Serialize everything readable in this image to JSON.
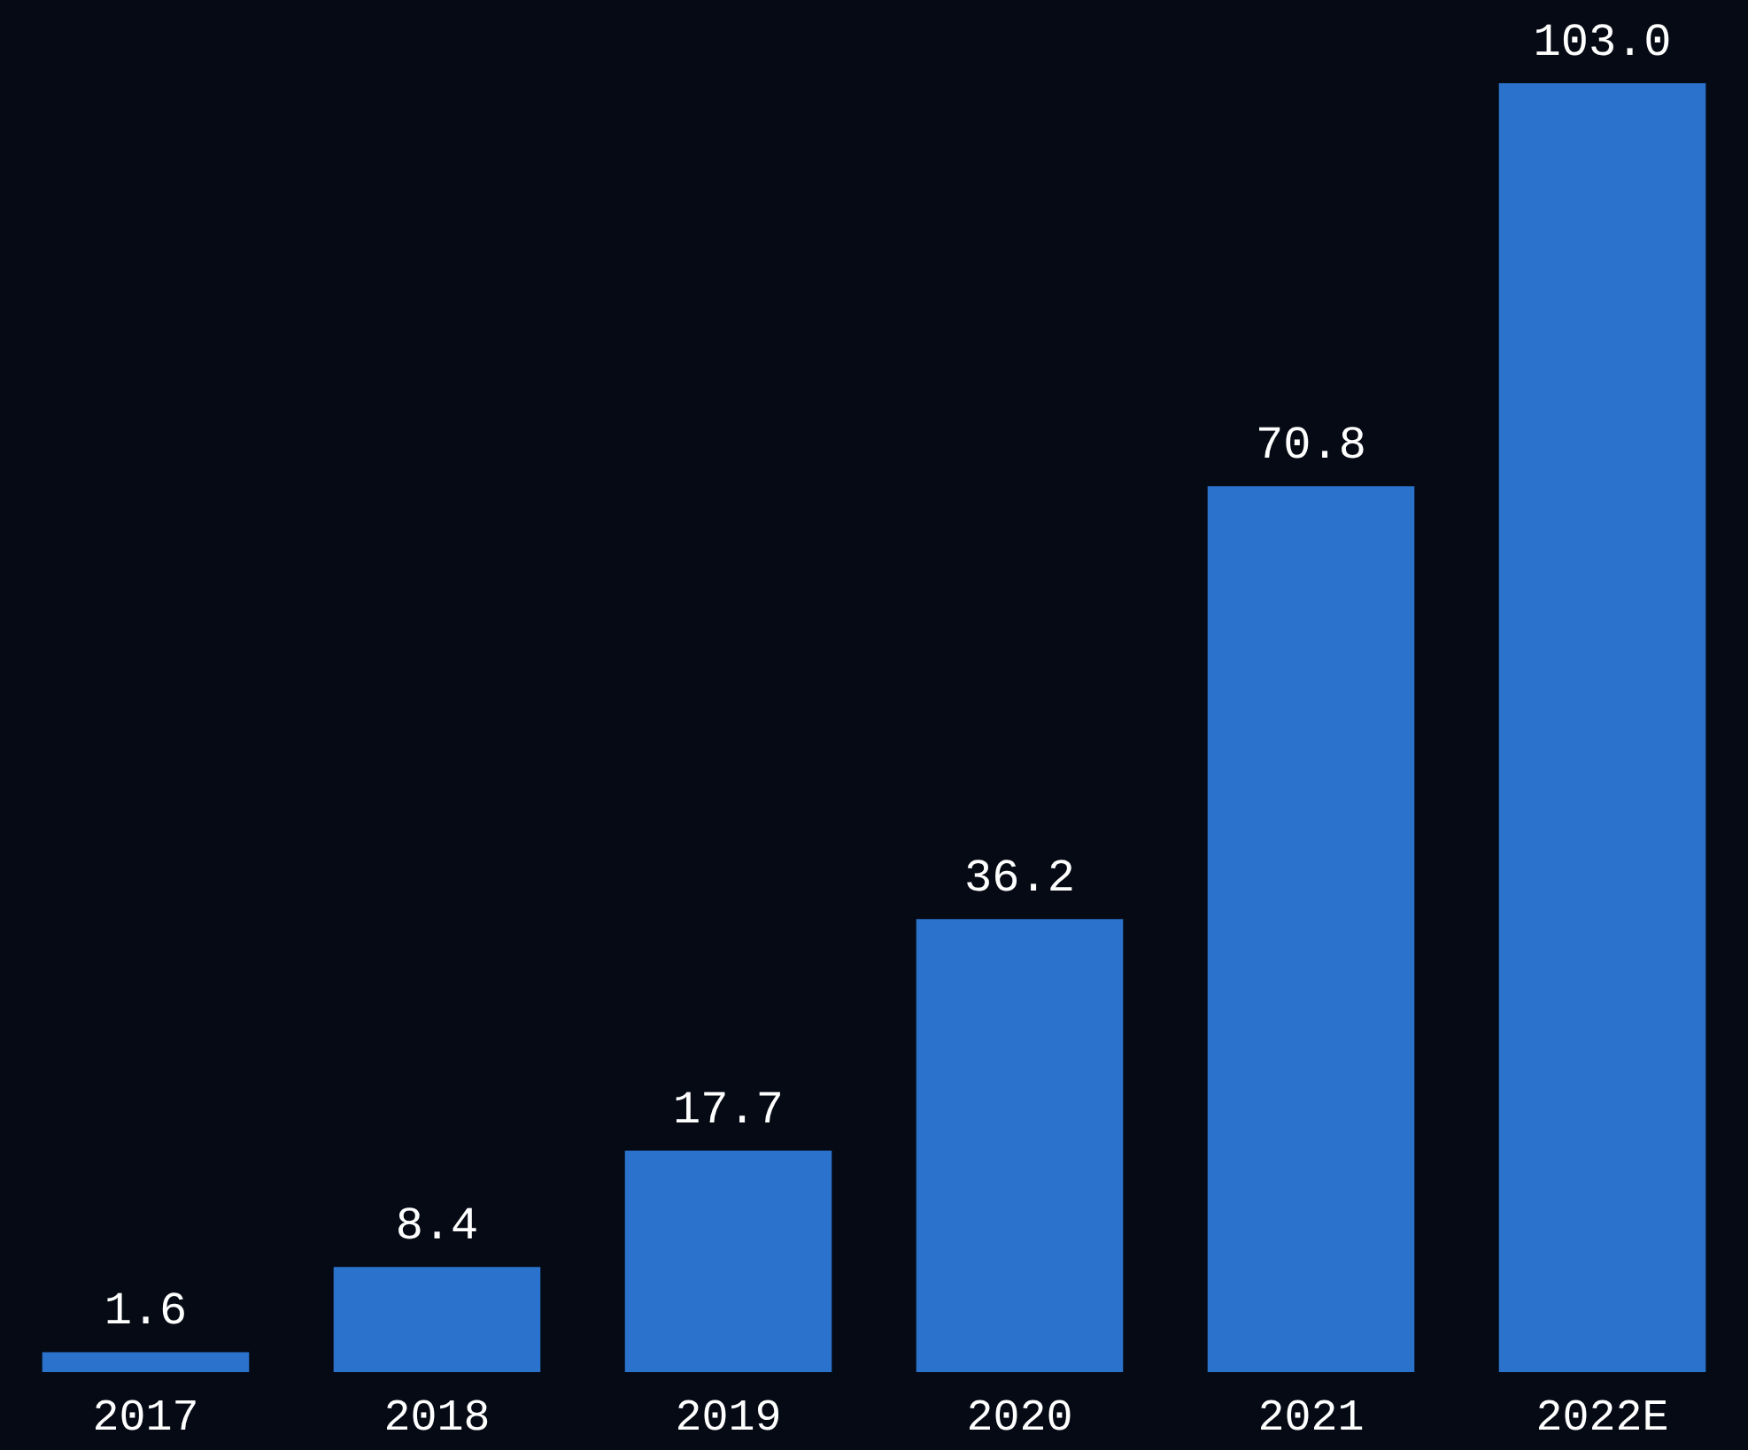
{
  "chart_data": {
    "type": "bar",
    "categories": [
      "2017",
      "2018",
      "2019",
      "2020",
      "2021",
      "2022E"
    ],
    "values": [
      1.6,
      8.4,
      17.7,
      36.2,
      70.8,
      103.0
    ],
    "value_labels": [
      "1.6",
      "8.4",
      "17.7",
      "36.2",
      "70.8",
      "103.0"
    ],
    "color": "#2a72cc"
  }
}
